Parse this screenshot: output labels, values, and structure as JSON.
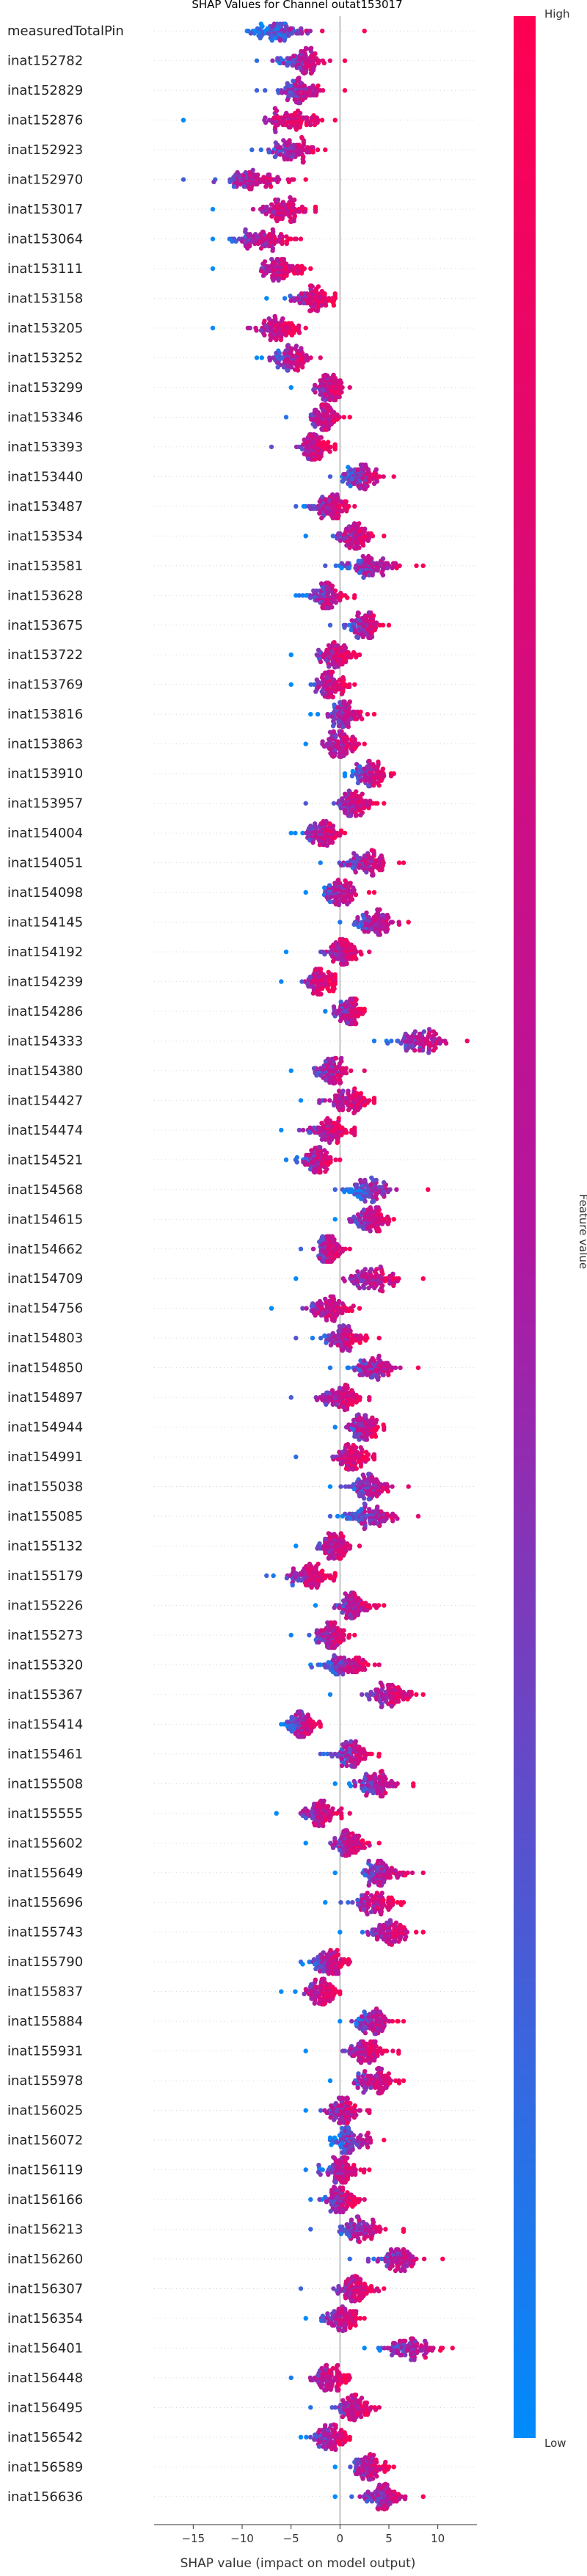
{
  "chart_data": {
    "type": "scatter",
    "subtype": "shap-beeswarm",
    "title": "SHAP Values for Channel outat153017",
    "xlabel": "SHAP value (impact on model output)",
    "xlim": [
      -19,
      14
    ],
    "xticks": [
      -15,
      -10,
      -5,
      0,
      5,
      10
    ],
    "zero_line": true,
    "colorbar": {
      "label": "Feature value",
      "high_label": "High",
      "low_label": "Low",
      "high_color": "#ff0052",
      "low_color": "#008bfb"
    },
    "features": [
      {
        "name": "measuredTotalPin",
        "center": -6.5,
        "spread": 3.5,
        "min": -9.5,
        "max": 2.5
      },
      {
        "name": "inat152782",
        "center": -4.0,
        "spread": 2.5,
        "min": -8.5,
        "max": 0.5
      },
      {
        "name": "inat152829",
        "center": -4.0,
        "spread": 2.5,
        "min": -8.5,
        "max": 0.5
      },
      {
        "name": "inat152876",
        "center": -5.0,
        "spread": 3.0,
        "min": -16.0,
        "max": -0.5
      },
      {
        "name": "inat152923",
        "center": -5.0,
        "spread": 2.5,
        "min": -9.0,
        "max": -1.5
      },
      {
        "name": "inat152970",
        "center": -9.0,
        "spread": 3.5,
        "min": -16.0,
        "max": -3.5
      },
      {
        "name": "inat153017",
        "center": -6.0,
        "spread": 3.0,
        "min": -13.0,
        "max": -2.5
      },
      {
        "name": "inat153064",
        "center": -8.0,
        "spread": 3.0,
        "min": -13.0,
        "max": -4.0
      },
      {
        "name": "inat153111",
        "center": -6.0,
        "spread": 2.5,
        "min": -13.0,
        "max": -3.0
      },
      {
        "name": "inat153158",
        "center": -3.0,
        "spread": 2.5,
        "min": -7.5,
        "max": -0.5
      },
      {
        "name": "inat153205",
        "center": -6.5,
        "spread": 2.5,
        "min": -13.0,
        "max": -3.5
      },
      {
        "name": "inat153252",
        "center": -5.0,
        "spread": 2.0,
        "min": -8.5,
        "max": -2.0
      },
      {
        "name": "inat153299",
        "center": -1.0,
        "spread": 2.0,
        "min": -5.0,
        "max": 1.0
      },
      {
        "name": "inat153346",
        "center": -1.5,
        "spread": 1.5,
        "min": -5.5,
        "max": 1.0
      },
      {
        "name": "inat153393",
        "center": -2.5,
        "spread": 2.0,
        "min": -7.0,
        "max": -0.5
      },
      {
        "name": "inat153440",
        "center": 2.0,
        "spread": 2.5,
        "min": -1.0,
        "max": 5.5
      },
      {
        "name": "inat153487",
        "center": -1.0,
        "spread": 2.0,
        "min": -4.5,
        "max": 1.5
      },
      {
        "name": "inat153534",
        "center": 1.5,
        "spread": 2.0,
        "min": -3.5,
        "max": 4.5
      },
      {
        "name": "inat153581",
        "center": 3.0,
        "spread": 3.0,
        "min": -1.5,
        "max": 8.5
      },
      {
        "name": "inat153628",
        "center": -1.5,
        "spread": 2.0,
        "min": -4.5,
        "max": 1.5
      },
      {
        "name": "inat153675",
        "center": 2.5,
        "spread": 2.0,
        "min": -1.0,
        "max": 5.0
      },
      {
        "name": "inat153722",
        "center": -0.5,
        "spread": 2.0,
        "min": -5.0,
        "max": 2.0
      },
      {
        "name": "inat153769",
        "center": -1.0,
        "spread": 2.0,
        "min": -5.0,
        "max": 1.5
      },
      {
        "name": "inat153816",
        "center": 0.5,
        "spread": 2.0,
        "min": -3.0,
        "max": 3.5
      },
      {
        "name": "inat153863",
        "center": 0.0,
        "spread": 2.0,
        "min": -3.5,
        "max": 2.5
      },
      {
        "name": "inat153910",
        "center": 3.0,
        "spread": 2.0,
        "min": 0.5,
        "max": 5.5
      },
      {
        "name": "inat153957",
        "center": 1.5,
        "spread": 2.0,
        "min": -3.5,
        "max": 4.5
      },
      {
        "name": "inat154004",
        "center": -2.0,
        "spread": 2.0,
        "min": -5.0,
        "max": 0.5
      },
      {
        "name": "inat154051",
        "center": 3.0,
        "spread": 2.5,
        "min": -2.0,
        "max": 6.5
      },
      {
        "name": "inat154098",
        "center": 0.0,
        "spread": 2.0,
        "min": -3.5,
        "max": 3.5
      },
      {
        "name": "inat154145",
        "center": 3.5,
        "spread": 2.5,
        "min": 0.0,
        "max": 7.0
      },
      {
        "name": "inat154192",
        "center": 0.5,
        "spread": 2.0,
        "min": -5.5,
        "max": 3.0
      },
      {
        "name": "inat154239",
        "center": -2.0,
        "spread": 1.5,
        "min": -6.0,
        "max": -0.5
      },
      {
        "name": "inat154286",
        "center": 1.0,
        "spread": 1.5,
        "min": -1.5,
        "max": 2.5
      },
      {
        "name": "inat154333",
        "center": 8.0,
        "spread": 3.0,
        "min": 3.5,
        "max": 13.0
      },
      {
        "name": "inat154380",
        "center": -1.0,
        "spread": 2.0,
        "min": -5.0,
        "max": 2.5
      },
      {
        "name": "inat154427",
        "center": 1.0,
        "spread": 2.5,
        "min": -4.0,
        "max": 3.5
      },
      {
        "name": "inat154474",
        "center": -1.0,
        "spread": 2.5,
        "min": -6.0,
        "max": 1.5
      },
      {
        "name": "inat154521",
        "center": -2.5,
        "spread": 2.0,
        "min": -5.5,
        "max": 0.0
      },
      {
        "name": "inat154568",
        "center": 3.0,
        "spread": 2.5,
        "min": -0.5,
        "max": 9.0
      },
      {
        "name": "inat154615",
        "center": 3.0,
        "spread": 2.0,
        "min": -0.5,
        "max": 5.5
      },
      {
        "name": "inat154662",
        "center": -1.0,
        "spread": 1.5,
        "min": -4.0,
        "max": 1.0
      },
      {
        "name": "inat154709",
        "center": 3.5,
        "spread": 3.0,
        "min": -4.5,
        "max": 8.5
      },
      {
        "name": "inat154756",
        "center": -1.0,
        "spread": 2.5,
        "min": -7.0,
        "max": 2.0
      },
      {
        "name": "inat154803",
        "center": 0.5,
        "spread": 2.5,
        "min": -4.5,
        "max": 4.0
      },
      {
        "name": "inat154850",
        "center": 3.5,
        "spread": 2.5,
        "min": -1.0,
        "max": 8.0
      },
      {
        "name": "inat154897",
        "center": 0.0,
        "spread": 2.5,
        "min": -5.0,
        "max": 3.0
      },
      {
        "name": "inat154944",
        "center": 2.5,
        "spread": 2.0,
        "min": -0.5,
        "max": 4.5
      },
      {
        "name": "inat154991",
        "center": 1.0,
        "spread": 2.0,
        "min": -4.5,
        "max": 3.5
      },
      {
        "name": "inat155038",
        "center": 3.0,
        "spread": 2.5,
        "min": -1.0,
        "max": 7.0
      },
      {
        "name": "inat155085",
        "center": 3.0,
        "spread": 3.0,
        "min": -1.0,
        "max": 8.0
      },
      {
        "name": "inat155132",
        "center": -0.5,
        "spread": 2.0,
        "min": -4.5,
        "max": 2.0
      },
      {
        "name": "inat155179",
        "center": -3.0,
        "spread": 2.5,
        "min": -7.5,
        "max": -0.5
      },
      {
        "name": "inat155226",
        "center": 1.5,
        "spread": 2.0,
        "min": -2.5,
        "max": 4.5
      },
      {
        "name": "inat155273",
        "center": -1.0,
        "spread": 2.0,
        "min": -5.0,
        "max": 1.5
      },
      {
        "name": "inat155320",
        "center": 0.5,
        "spread": 2.5,
        "min": -3.0,
        "max": 4.0
      },
      {
        "name": "inat155367",
        "center": 5.0,
        "spread": 2.5,
        "min": -1.0,
        "max": 8.5
      },
      {
        "name": "inat155414",
        "center": -4.0,
        "spread": 1.5,
        "min": -6.0,
        "max": -2.0
      },
      {
        "name": "inat155461",
        "center": 1.0,
        "spread": 2.0,
        "min": -2.0,
        "max": 4.0
      },
      {
        "name": "inat155508",
        "center": 3.5,
        "spread": 2.5,
        "min": -0.5,
        "max": 7.5
      },
      {
        "name": "inat155555",
        "center": -2.0,
        "spread": 2.0,
        "min": -6.5,
        "max": 1.0
      },
      {
        "name": "inat155602",
        "center": 1.0,
        "spread": 2.0,
        "min": -3.5,
        "max": 4.0
      },
      {
        "name": "inat155649",
        "center": 4.5,
        "spread": 2.5,
        "min": -0.5,
        "max": 8.5
      },
      {
        "name": "inat155696",
        "center": 3.5,
        "spread": 2.5,
        "min": -1.5,
        "max": 6.5
      },
      {
        "name": "inat155743",
        "center": 5.0,
        "spread": 2.5,
        "min": 0.0,
        "max": 8.5
      },
      {
        "name": "inat155790",
        "center": -1.0,
        "spread": 2.0,
        "min": -4.0,
        "max": 1.0
      },
      {
        "name": "inat155837",
        "center": -2.0,
        "spread": 2.0,
        "min": -6.0,
        "max": 0.0
      },
      {
        "name": "inat155884",
        "center": 3.5,
        "spread": 2.0,
        "min": 0.0,
        "max": 6.5
      },
      {
        "name": "inat155931",
        "center": 2.5,
        "spread": 2.5,
        "min": -3.5,
        "max": 6.0
      },
      {
        "name": "inat155978",
        "center": 3.5,
        "spread": 2.5,
        "min": -1.0,
        "max": 6.5
      },
      {
        "name": "inat156025",
        "center": 0.5,
        "spread": 2.0,
        "min": -3.5,
        "max": 3.0
      },
      {
        "name": "inat156072",
        "center": 1.0,
        "spread": 2.0,
        "min": -1.0,
        "max": 4.5
      },
      {
        "name": "inat156119",
        "center": 0.0,
        "spread": 2.0,
        "min": -3.5,
        "max": 3.0
      },
      {
        "name": "inat156166",
        "center": 0.0,
        "spread": 2.0,
        "min": -3.0,
        "max": 2.5
      },
      {
        "name": "inat156213",
        "center": 2.0,
        "spread": 2.5,
        "min": -3.0,
        "max": 6.5
      },
      {
        "name": "inat156260",
        "center": 6.0,
        "spread": 2.5,
        "min": 1.0,
        "max": 10.5
      },
      {
        "name": "inat156307",
        "center": 1.5,
        "spread": 2.0,
        "min": -4.0,
        "max": 4.5
      },
      {
        "name": "inat156354",
        "center": 0.0,
        "spread": 2.0,
        "min": -3.5,
        "max": 2.5
      },
      {
        "name": "inat156401",
        "center": 7.0,
        "spread": 3.0,
        "min": 2.5,
        "max": 11.5
      },
      {
        "name": "inat156448",
        "center": -1.0,
        "spread": 2.0,
        "min": -5.0,
        "max": 1.0
      },
      {
        "name": "inat156495",
        "center": 1.5,
        "spread": 2.0,
        "min": -3.0,
        "max": 4.0
      },
      {
        "name": "inat156542",
        "center": -1.0,
        "spread": 2.0,
        "min": -4.0,
        "max": 1.0
      },
      {
        "name": "inat156589",
        "center": 3.0,
        "spread": 2.0,
        "min": -0.5,
        "max": 5.5
      },
      {
        "name": "inat156636",
        "center": 4.5,
        "spread": 2.5,
        "min": -0.5,
        "max": 8.5
      }
    ]
  }
}
